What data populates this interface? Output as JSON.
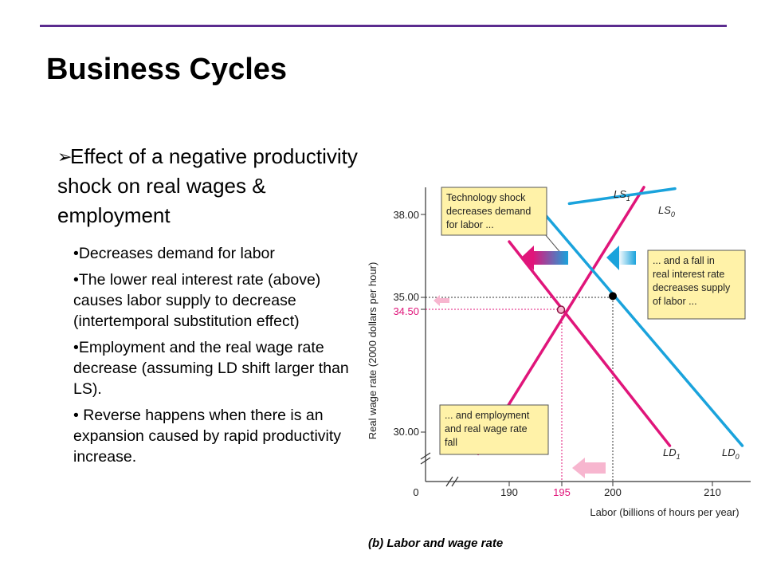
{
  "slide": {
    "title": "Business Cycles",
    "main_bullet": "Effect of a negative productivity shock on real wages & employment",
    "sub_bullets": [
      "•Decreases demand for labor",
      "•The lower real interest rate (above) causes labor supply to decrease (intertemporal substitution effect)",
      "•Employment and the real wage rate decrease (assuming LD shift larger than LS).",
      "• Reverse happens when there is an expansion caused by rapid productivity increase."
    ],
    "accent_color": "#5b2c8f"
  },
  "chart_data": {
    "type": "line",
    "caption": "(b) Labor and wage rate",
    "xlabel": "Labor (billions of hours per year)",
    "ylabel": "Real wage rate (2000 dollars per hour)",
    "x_ticks": [
      "0",
      "190",
      "195",
      "200",
      "210"
    ],
    "y_ticks": [
      "38.00",
      "35.00",
      "34.50",
      "30.00"
    ],
    "xlim": [
      185,
      214
    ],
    "ylim": [
      28.8,
      39.2
    ],
    "series": [
      {
        "name": "LS",
        "sub": "1",
        "color": "#e0157a",
        "points": [
          [
            187.0,
            29.2
          ],
          [
            203.0,
            39.0
          ]
        ]
      },
      {
        "name": "LS",
        "sub": "0",
        "color": "#1aa3dc",
        "points": [
          [
            195.8,
            38.4
          ],
          [
            206.0,
            38.95
          ]
        ]
      },
      {
        "name": "LD",
        "sub": "1",
        "color": "#e0157a",
        "points": [
          [
            190.0,
            37.0
          ],
          [
            205.5,
            29.5
          ]
        ]
      },
      {
        "name": "LD",
        "sub": "0",
        "color": "#1aa3dc",
        "points": [
          [
            193.0,
            38.2
          ],
          [
            212.5,
            29.5
          ]
        ]
      }
    ],
    "equilibria": [
      {
        "x": 200,
        "y": 35.0,
        "style": "filled"
      },
      {
        "x": 195,
        "y": 34.5,
        "style": "open"
      }
    ],
    "annotations": [
      "Technology shock decreases demand for labor ...",
      "... and a fall in real interest rate decreases supply of labor ...",
      "... and employment and real wage rate fall"
    ],
    "annotation_fill": "#fff2a8",
    "highlight_color": "#e0157a",
    "grid": false,
    "axis_breaks": true
  }
}
